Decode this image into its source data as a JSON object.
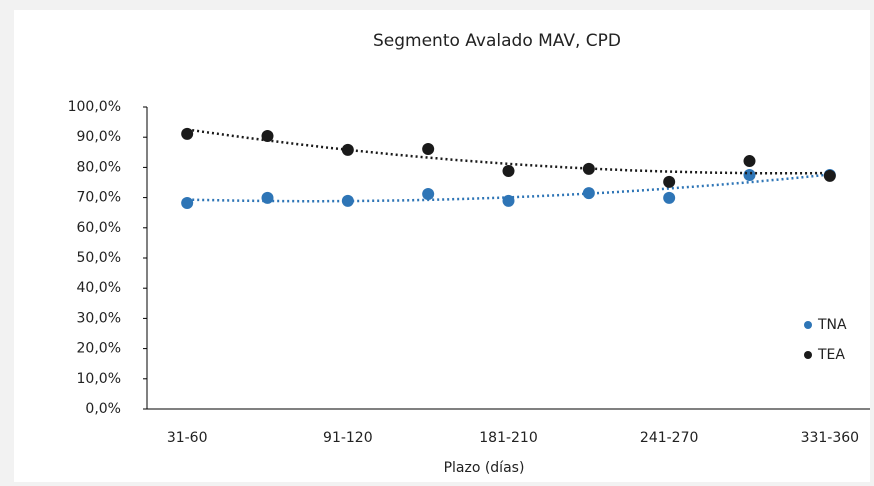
{
  "chart_data": {
    "type": "scatter",
    "title": "Segmento Avalado MAV, CPD",
    "xlabel": "Plazo (días)",
    "categories": [
      "31-60",
      null,
      "91-120",
      null,
      "181-210",
      null,
      "241-270",
      null,
      "331-360"
    ],
    "series": [
      {
        "name": "TNA",
        "color": "#2e75b6",
        "values": [
          68.2,
          69.9,
          68.9,
          71.2,
          68.9,
          71.5,
          69.9,
          77.5,
          77.5
        ]
      },
      {
        "name": "TEA",
        "color": "#1a1a1a",
        "values": [
          91.1,
          90.4,
          85.8,
          86.1,
          78.8,
          79.5,
          75.2,
          82.1,
          77.2
        ]
      }
    ],
    "ylim": [
      0,
      100
    ],
    "yticks": [
      {
        "value": 0,
        "label": "0,0%"
      },
      {
        "value": 10,
        "label": "10,0%"
      },
      {
        "value": 20,
        "label": "20,0%"
      },
      {
        "value": 30,
        "label": "30,0%"
      },
      {
        "value": 40,
        "label": "40,0%"
      },
      {
        "value": 50,
        "label": "50,0%"
      },
      {
        "value": 60,
        "label": "60,0%"
      },
      {
        "value": 70,
        "label": "70,0%"
      },
      {
        "value": 80,
        "label": "80,0%"
      },
      {
        "value": 90,
        "label": "90,0%"
      },
      {
        "value": 100,
        "label": "100,0%"
      }
    ],
    "trendline": "polynomial",
    "legend": "right",
    "grid": false
  }
}
